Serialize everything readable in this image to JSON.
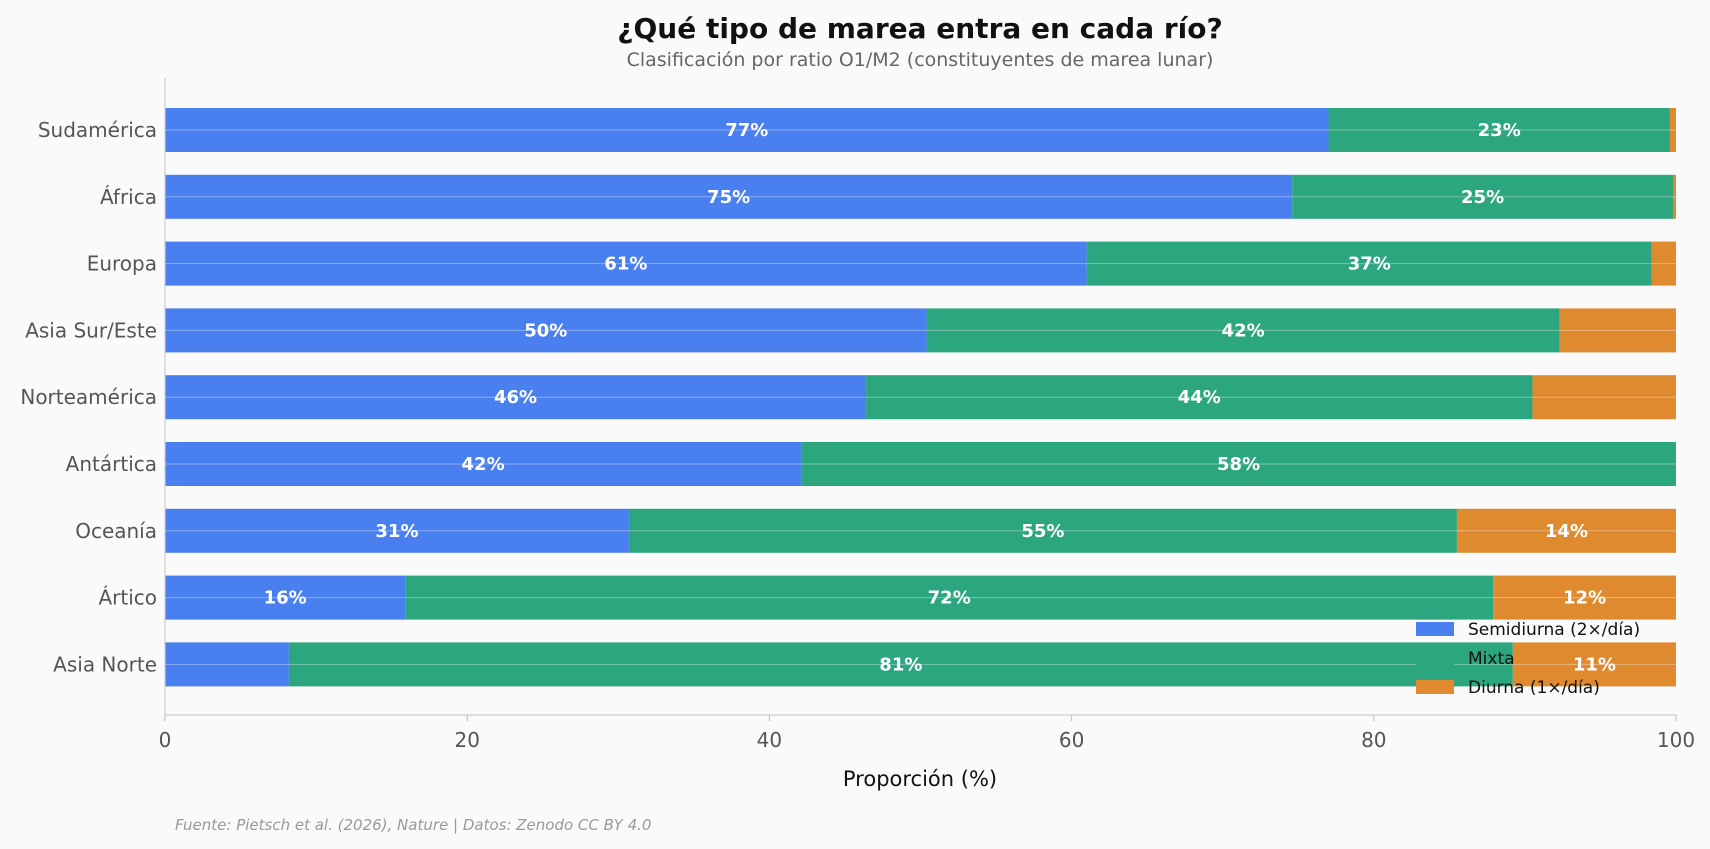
{
  "chart_data": {
    "type": "bar",
    "orientation": "horizontal",
    "stacked": true,
    "title": "¿Qué tipo de marea entra en cada río?",
    "subtitle": "Clasificación por ratio O1/M2 (constituyentes de marea lunar)",
    "xlabel": "Proporción (%)",
    "ylabel": "",
    "xlim": [
      0,
      100
    ],
    "xticks": [
      "0",
      "20",
      "40",
      "60",
      "80",
      "100"
    ],
    "categories": [
      "Sudamérica",
      "África",
      "Europa",
      "Asia Sur/Este",
      "Norteamérica",
      "Antártica",
      "Oceanía",
      "Ártico",
      "Asia Norte"
    ],
    "series": [
      {
        "name": "Semidiurna (2×/día)",
        "color": "#4a7ff0",
        "values": [
          77,
          74.6,
          61,
          50.4,
          46.4,
          42.1,
          30.7,
          15.9,
          8.2
        ],
        "labels": [
          "77%",
          "75%",
          "61%",
          "50%",
          "46%",
          "42%",
          "31%",
          "16%",
          ""
        ]
      },
      {
        "name": "Mixta",
        "color": "#2ca67e",
        "values": [
          22.6,
          25.2,
          37.4,
          41.9,
          44.1,
          57.9,
          54.8,
          72,
          81
        ]
      },
      {
        "name": "Diurna (1×/día)",
        "color": "#df8a2e",
        "values": [
          0.4,
          0.2,
          1.6,
          7.7,
          9.5,
          0,
          14.5,
          12.1,
          10.8
        ]
      }
    ],
    "labels": {
      "mixed": [
        "23%",
        "25%",
        "37%",
        "42%",
        "44%",
        "58%",
        "55%",
        "72%",
        "81%"
      ],
      "diurnal": [
        "",
        "",
        "",
        "",
        "",
        "",
        "14%",
        "12%",
        "11%"
      ]
    },
    "legend_position": "bottom-right",
    "grid": "horizontal faint lines through bars",
    "source": "Fuente: Pietsch et al. (2026), Nature | Datos: Zenodo CC BY 4.0"
  }
}
